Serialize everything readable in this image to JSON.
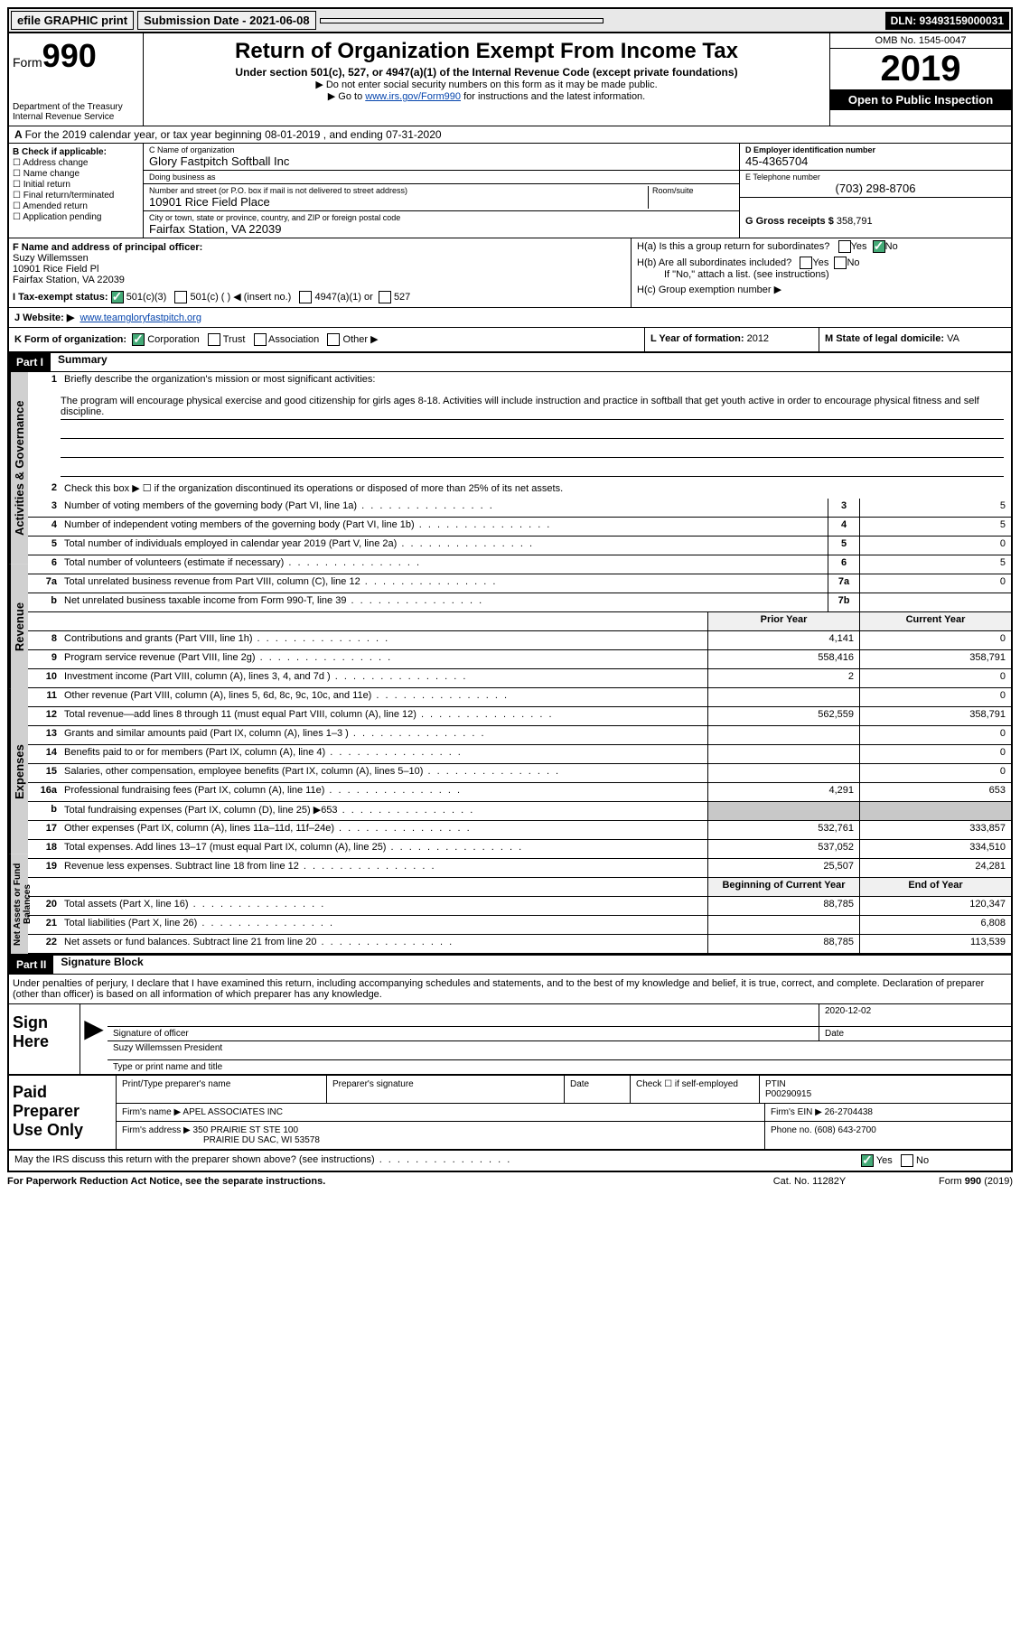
{
  "topbar": {
    "efile": "efile GRAPHIC print",
    "submission_label": "Submission Date - 2021-06-08",
    "dln": "DLN: 93493159000031"
  },
  "header": {
    "form_prefix": "Form",
    "form_number": "990",
    "dept": "Department of the Treasury\nInternal Revenue Service",
    "title": "Return of Organization Exempt From Income Tax",
    "subtitle": "Under section 501(c), 527, or 4947(a)(1) of the Internal Revenue Code (except private foundations)",
    "note1": "Do not enter social security numbers on this form as it may be made public.",
    "note2_pre": "Go to ",
    "note2_link": "www.irs.gov/Form990",
    "note2_post": " for instructions and the latest information.",
    "omb": "OMB No. 1545-0047",
    "year": "2019",
    "open": "Open to Public Inspection"
  },
  "row_a": "For the 2019 calendar year, or tax year beginning 08-01-2019   , and ending 07-31-2020",
  "box_b": {
    "title": "B Check if applicable:",
    "items": [
      "Address change",
      "Name change",
      "Initial return",
      "Final return/terminated",
      "Amended return",
      "Application pending"
    ]
  },
  "box_c": {
    "name_lbl": "C Name of organization",
    "name": "Glory Fastpitch Softball Inc",
    "dba_lbl": "Doing business as",
    "dba": "",
    "addr_lbl": "Number and street (or P.O. box if mail is not delivered to street address)",
    "addr": "10901 Rice Field Place",
    "room_lbl": "Room/suite",
    "city_lbl": "City or town, state or province, country, and ZIP or foreign postal code",
    "city": "Fairfax Station, VA  22039"
  },
  "box_d": {
    "lbl": "D Employer identification number",
    "val": "45-4365704"
  },
  "box_e": {
    "lbl": "E Telephone number",
    "val": "(703) 298-8706"
  },
  "box_g": {
    "lbl": "G Gross receipts $",
    "val": "358,791"
  },
  "box_f": {
    "lbl": "F  Name and address of principal officer:",
    "name": "Suzy Willemssen",
    "addr1": "10901 Rice Field Pl",
    "addr2": "Fairfax Station, VA  22039"
  },
  "box_h": {
    "a": "H(a)  Is this a group return for subordinates?",
    "b": "H(b)  Are all subordinates included?",
    "b_note": "If \"No,\" attach a list. (see instructions)",
    "c": "H(c)  Group exemption number ▶",
    "yes": "Yes",
    "no": "No"
  },
  "tax_status": {
    "lbl": "I  Tax-exempt status:",
    "opts": [
      "501(c)(3)",
      "501(c) (  ) ◀ (insert no.)",
      "4947(a)(1) or",
      "527"
    ]
  },
  "website": {
    "lbl": "J  Website: ▶",
    "val": "www.teamgloryfastpitch.org"
  },
  "line_k": {
    "k": "K Form of organization:",
    "k_opts": [
      "Corporation",
      "Trust",
      "Association",
      "Other ▶"
    ],
    "l_lbl": "L Year of formation:",
    "l_val": "2012",
    "m_lbl": "M State of legal domicile:",
    "m_val": "VA"
  },
  "part1": {
    "hdr": "Part I",
    "title": "Summary",
    "q1": "Briefly describe the organization's mission or most significant activities:",
    "mission": "The program will encourage physical exercise and good citizenship for girls ages 8-18. Activities will include instruction and practice in softball that get youth active in order to encourage physical fitness and self discipline.",
    "q2": "Check this box ▶ ☐  if the organization discontinued its operations or disposed of more than 25% of its net assets.",
    "col_prior": "Prior Year",
    "col_current": "Current Year",
    "col_begin": "Beginning of Current Year",
    "col_end": "End of Year",
    "lines_gov": [
      {
        "n": "3",
        "d": "Number of voting members of the governing body (Part VI, line 1a)",
        "box": "3",
        "v2": "5"
      },
      {
        "n": "4",
        "d": "Number of independent voting members of the governing body (Part VI, line 1b)",
        "box": "4",
        "v2": "5"
      },
      {
        "n": "5",
        "d": "Total number of individuals employed in calendar year 2019 (Part V, line 2a)",
        "box": "5",
        "v2": "0"
      },
      {
        "n": "6",
        "d": "Total number of volunteers (estimate if necessary)",
        "box": "6",
        "v2": "5"
      },
      {
        "n": "7a",
        "d": "Total unrelated business revenue from Part VIII, column (C), line 12",
        "box": "7a",
        "v2": "0"
      },
      {
        "n": "b",
        "d": "Net unrelated business taxable income from Form 990-T, line 39",
        "box": "7b",
        "v2": ""
      }
    ],
    "lines_rev": [
      {
        "n": "8",
        "d": "Contributions and grants (Part VIII, line 1h)",
        "v1": "4,141",
        "v2": "0"
      },
      {
        "n": "9",
        "d": "Program service revenue (Part VIII, line 2g)",
        "v1": "558,416",
        "v2": "358,791"
      },
      {
        "n": "10",
        "d": "Investment income (Part VIII, column (A), lines 3, 4, and 7d )",
        "v1": "2",
        "v2": "0"
      },
      {
        "n": "11",
        "d": "Other revenue (Part VIII, column (A), lines 5, 6d, 8c, 9c, 10c, and 11e)",
        "v1": "",
        "v2": "0"
      },
      {
        "n": "12",
        "d": "Total revenue—add lines 8 through 11 (must equal Part VIII, column (A), line 12)",
        "v1": "562,559",
        "v2": "358,791"
      }
    ],
    "lines_exp": [
      {
        "n": "13",
        "d": "Grants and similar amounts paid (Part IX, column (A), lines 1–3 )",
        "v1": "",
        "v2": "0"
      },
      {
        "n": "14",
        "d": "Benefits paid to or for members (Part IX, column (A), line 4)",
        "v1": "",
        "v2": "0"
      },
      {
        "n": "15",
        "d": "Salaries, other compensation, employee benefits (Part IX, column (A), lines 5–10)",
        "v1": "",
        "v2": "0"
      },
      {
        "n": "16a",
        "d": "Professional fundraising fees (Part IX, column (A), line 11e)",
        "v1": "4,291",
        "v2": "653"
      },
      {
        "n": "b",
        "d": "Total fundraising expenses (Part IX, column (D), line 25) ▶653",
        "v1": "",
        "v2": "",
        "grey": true
      },
      {
        "n": "17",
        "d": "Other expenses (Part IX, column (A), lines 11a–11d, 11f–24e)",
        "v1": "532,761",
        "v2": "333,857"
      },
      {
        "n": "18",
        "d": "Total expenses. Add lines 13–17 (must equal Part IX, column (A), line 25)",
        "v1": "537,052",
        "v2": "334,510"
      },
      {
        "n": "19",
        "d": "Revenue less expenses. Subtract line 18 from line 12",
        "v1": "25,507",
        "v2": "24,281"
      }
    ],
    "lines_net": [
      {
        "n": "20",
        "d": "Total assets (Part X, line 16)",
        "v1": "88,785",
        "v2": "120,347"
      },
      {
        "n": "21",
        "d": "Total liabilities (Part X, line 26)",
        "v1": "",
        "v2": "6,808"
      },
      {
        "n": "22",
        "d": "Net assets or fund balances. Subtract line 21 from line 20",
        "v1": "88,785",
        "v2": "113,539"
      }
    ]
  },
  "part2": {
    "hdr": "Part II",
    "title": "Signature Block",
    "intro": "Under penalties of perjury, I declare that I have examined this return, including accompanying schedules and statements, and to the best of my knowledge and belief, it is true, correct, and complete. Declaration of preparer (other than officer) is based on all information of which preparer has any knowledge.",
    "sign_here": "Sign Here",
    "sig_lbl": "Signature of officer",
    "date_lbl": "Date",
    "date_val": "2020-12-02",
    "name_title": "Suzy Willemssen  President",
    "name_title_lbl": "Type or print name and title",
    "paid": "Paid Preparer Use Only",
    "prep_name_lbl": "Print/Type preparer's name",
    "prep_sig_lbl": "Preparer's signature",
    "prep_date_lbl": "Date",
    "prep_check": "Check ☐ if self-employed",
    "ptin_lbl": "PTIN",
    "ptin": "P00290915",
    "firm_name_lbl": "Firm's name    ▶",
    "firm_name": "APEL ASSOCIATES INC",
    "firm_ein_lbl": "Firm's EIN ▶",
    "firm_ein": "26-2704438",
    "firm_addr_lbl": "Firm's address ▶",
    "firm_addr1": "350 PRAIRIE ST STE 100",
    "firm_addr2": "PRAIRIE DU SAC, WI  53578",
    "phone_lbl": "Phone no.",
    "phone": "(608) 643-2700",
    "discuss": "May the IRS discuss this return with the preparer shown above? (see instructions)",
    "yes": "Yes",
    "no": "No"
  },
  "footer": {
    "left": "For Paperwork Reduction Act Notice, see the separate instructions.",
    "mid": "Cat. No. 11282Y",
    "right": "Form 990 (2019)"
  },
  "vtabs": {
    "gov": "Activities & Governance",
    "rev": "Revenue",
    "exp": "Expenses",
    "net": "Net Assets or Fund Balances"
  }
}
